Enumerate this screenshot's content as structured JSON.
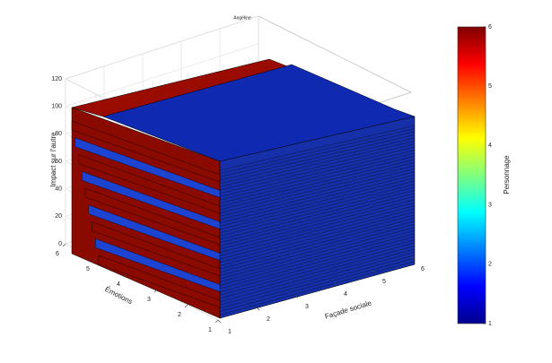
{
  "chart_data": {
    "type": "surface3d",
    "title": "Angéline",
    "xlabel": "Façade sociale",
    "ylabel": "Émotions",
    "zlabel": "Impact sur l'autre",
    "xlim": [
      1,
      6
    ],
    "xticks": [
      1,
      2,
      3,
      4,
      5,
      6
    ],
    "ylim": [
      1,
      6
    ],
    "yticks": [
      1,
      2,
      3,
      4,
      5,
      6
    ],
    "zlim": [
      0,
      120
    ],
    "zticks": [
      0,
      20,
      40,
      60,
      80,
      100,
      120
    ],
    "grid": true,
    "colorbar": {
      "label": "Personnage",
      "lim": [
        1,
        6
      ],
      "ticks": [
        1,
        2,
        3,
        4,
        5,
        6
      ],
      "colormap": "jet"
    }
  }
}
